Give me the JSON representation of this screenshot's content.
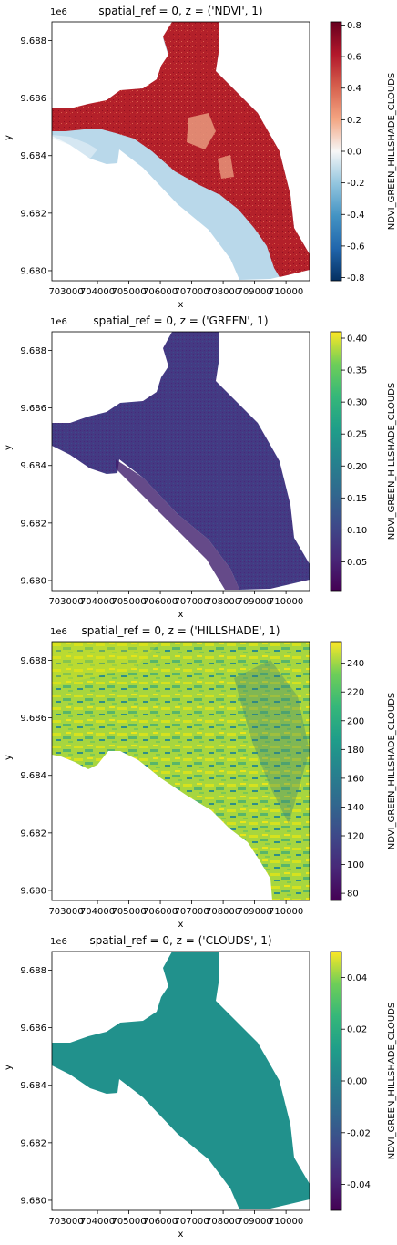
{
  "chart_data": [
    {
      "type": "heatmap",
      "title": "spatial_ref = 0, z = ('NDVI', 1)",
      "xlabel": "x",
      "ylabel": "y",
      "y_offset_label": "1e6",
      "x_ticks": [
        "703000",
        "704000",
        "705000",
        "706000",
        "707000",
        "708000",
        "709000",
        "710000"
      ],
      "y_ticks": [
        "9.680",
        "9.682",
        "9.684",
        "9.686",
        "9.688"
      ],
      "colorbar_label": "NDVI_GREEN_HILLSHADE_CLOUDS",
      "colorbar_ticks": [
        "-0.8",
        "-0.6",
        "-0.4",
        "-0.2",
        "0.0",
        "0.2",
        "0.4",
        "0.6",
        "0.8"
      ],
      "colorbar_range": [
        -0.82,
        0.82
      ],
      "colormap": "RdBu_r",
      "coverage": "footprint",
      "colors": {
        "land": "#b3202a",
        "water": "#b9d8ea",
        "bare": "#e89a7e"
      }
    },
    {
      "type": "heatmap",
      "title": "spatial_ref = 0, z = ('GREEN', 1)",
      "xlabel": "x",
      "ylabel": "y",
      "y_offset_label": "1e6",
      "x_ticks": [
        "703000",
        "704000",
        "705000",
        "706000",
        "707000",
        "708000",
        "709000",
        "710000"
      ],
      "y_ticks": [
        "9.680",
        "9.682",
        "9.684",
        "9.686",
        "9.688"
      ],
      "colorbar_label": "NDVI_GREEN_HILLSHADE_CLOUDS",
      "colorbar_ticks": [
        "0.05",
        "0.10",
        "0.15",
        "0.20",
        "0.25",
        "0.30",
        "0.35",
        "0.40"
      ],
      "colorbar_range": [
        0.005,
        0.41
      ],
      "colormap": "viridis",
      "coverage": "footprint",
      "colors": {
        "fill": "#443a83",
        "dark": "#3f1d6b"
      }
    },
    {
      "type": "heatmap",
      "title": "spatial_ref = 0, z = ('HILLSHADE', 1)",
      "xlabel": "x",
      "ylabel": "y",
      "y_offset_label": "1e6",
      "x_ticks": [
        "703000",
        "704000",
        "705000",
        "706000",
        "707000",
        "708000",
        "709000",
        "710000"
      ],
      "y_ticks": [
        "9.680",
        "9.682",
        "9.684",
        "9.686",
        "9.688"
      ],
      "colorbar_label": "NDVI_GREEN_HILLSHADE_CLOUDS",
      "colorbar_ticks": [
        "80",
        "100",
        "120",
        "140",
        "160",
        "180",
        "200",
        "220",
        "240"
      ],
      "colorbar_range": [
        75,
        255
      ],
      "colormap": "viridis",
      "coverage": "land",
      "colors": {
        "base": "#a7d63f",
        "light": "#dde31a",
        "dark": "#3a7f7a"
      }
    },
    {
      "type": "heatmap",
      "title": "spatial_ref = 0, z = ('CLOUDS', 1)",
      "xlabel": "x",
      "ylabel": "y",
      "y_offset_label": "1e6",
      "x_ticks": [
        "703000",
        "704000",
        "705000",
        "706000",
        "707000",
        "708000",
        "709000",
        "710000"
      ],
      "y_ticks": [
        "9.680",
        "9.682",
        "9.684",
        "9.686",
        "9.688"
      ],
      "colorbar_label": "NDVI_GREEN_HILLSHADE_CLOUDS",
      "colorbar_ticks": [
        "-0.04",
        "-0.02",
        "0.00",
        "0.02",
        "0.04"
      ],
      "colorbar_range": [
        -0.05,
        0.05
      ],
      "colormap": "viridis",
      "coverage": "footprint",
      "value": 0.0,
      "colors": {
        "fill": "#21918c"
      }
    }
  ]
}
